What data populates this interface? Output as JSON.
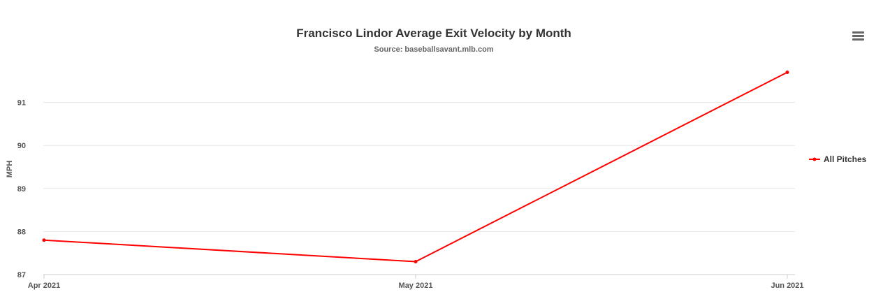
{
  "chart_data": {
    "type": "line",
    "title": "Francisco Lindor Average Exit Velocity by Month",
    "subtitle": "Source: baseballsavant.mlb.com",
    "xlabel": "",
    "ylabel": "MPH",
    "categories": [
      "Apr 2021",
      "May 2021",
      "Jun 2021"
    ],
    "series": [
      {
        "name": "All Pitches",
        "color": "#ff0000",
        "values": [
          87.8,
          87.3,
          91.7
        ]
      }
    ],
    "yticks": [
      87,
      88,
      89,
      90,
      91
    ],
    "ylim": [
      87,
      92
    ],
    "grid": true,
    "legend_position": "right"
  },
  "toolbar": {
    "menu_icon": "hamburger-menu-icon"
  }
}
